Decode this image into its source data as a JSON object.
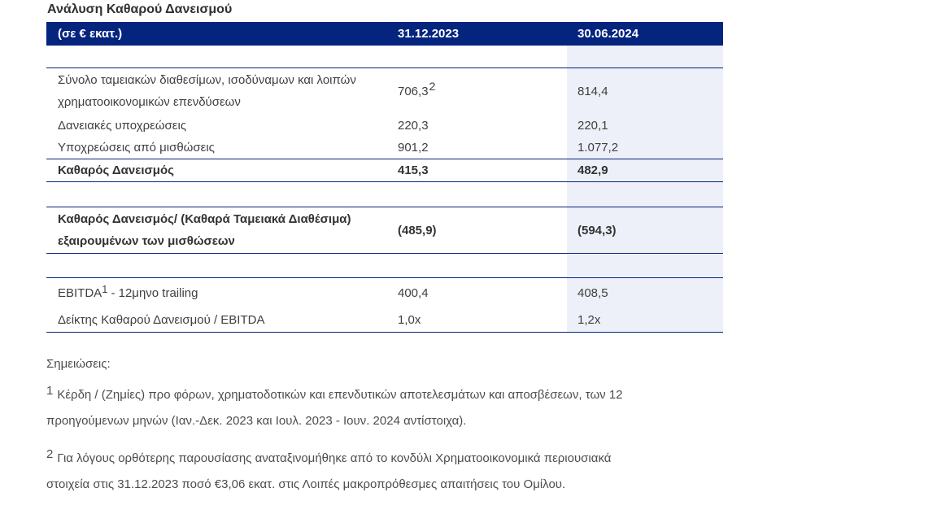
{
  "title": "Ανάλυση Καθαρού Δανεισμού",
  "colors": {
    "header_bg": "#04247e",
    "header_text": "#ffffff",
    "column_band_bg": "#edf0f8",
    "border": "#04247e",
    "body_text": "#3f3f3f"
  },
  "table": {
    "header": {
      "col1": "(σε € εκατ.)",
      "col2": "31.12.2023",
      "col3": "30.06.2024"
    },
    "rows": [
      {
        "label": "Σύνολο ταμειακών διαθεσίμων, ισοδύναμων και λοιπών χρηματοοικονομικών επενδύσεων",
        "v1": "706,3",
        "v1_sup": "2",
        "v2": "814,4"
      },
      {
        "label": "Δανειακές υποχρεώσεις",
        "v1": "220,3",
        "v2": "220,1"
      },
      {
        "label": "Υποχρεώσεις από μισθώσεις",
        "v1": "901,2",
        "v2": "1.077,2"
      },
      {
        "label": "Καθαρός Δανεισμός",
        "v1": "415,3",
        "v2": "482,9"
      },
      {
        "label": "Καθαρός Δανεισμός/ (Καθαρά Ταμειακά Διαθέσιμα) εξαιρουμένων των μισθώσεων",
        "v1": "(485,9)",
        "v2": "(594,3)"
      },
      {
        "label_pre": "EBITDA",
        "label_sup": "1",
        "label_post": " - 12μηνο trailing",
        "v1": "400,4",
        "v2": "408,5"
      },
      {
        "label": "Δείκτης Καθαρού Δανεισμού / EBITDA",
        "v1": "1,0x",
        "v2": "1,2x"
      }
    ]
  },
  "notes": {
    "title": "Σημειώσεις:",
    "items": [
      {
        "sup": "1",
        "lines": [
          "Κέρδη / (Ζημίες) προ φόρων, χρηματοδοτικών και επενδυτικών αποτελεσμάτων και αποσβέσεων, των 12",
          "προηγούμενων μηνών (Ιαν.-Δεκ. 2023 και Ιουλ. 2023 - Ιουν. 2024 αντίστοιχα)."
        ]
      },
      {
        "sup": "2",
        "lines": [
          "Για λόγους ορθότερης παρουσίασης αναταξινομήθηκε από το κονδύλι Χρηματοοικονομικά περιουσιακά",
          "στοιχεία στις 31.12.2023 ποσό €3,06 εκατ. στις Λοιπές μακροπρόθεσμες απαιτήσεις του Ομίλου."
        ]
      }
    ]
  }
}
